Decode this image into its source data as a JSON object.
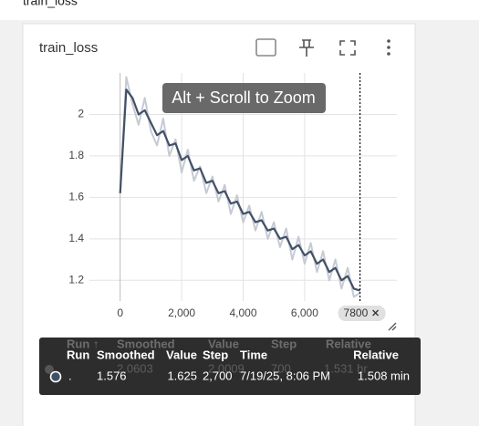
{
  "header": {
    "title": "train_loss"
  },
  "card": {
    "title": "train_loss",
    "zoom_hint": "Alt + Scroll to Zoom"
  },
  "chart_data": {
    "type": "line",
    "x": [
      0,
      200,
      400,
      600,
      800,
      1000,
      1200,
      1400,
      1600,
      1800,
      2000,
      2200,
      2400,
      2600,
      2800,
      3000,
      3200,
      3400,
      3600,
      3800,
      4000,
      4200,
      4400,
      4600,
      4800,
      5000,
      5200,
      5400,
      5600,
      5800,
      6000,
      6200,
      6400,
      6600,
      6800,
      7000,
      7200,
      7400,
      7600,
      7800
    ],
    "series": [
      {
        "color": "#c5cad3",
        "values": [
          1.62,
          2.18,
          2.05,
          1.95,
          2.08,
          1.92,
          1.85,
          1.98,
          1.8,
          1.88,
          1.72,
          1.83,
          1.68,
          1.75,
          1.62,
          1.7,
          1.58,
          1.66,
          1.52,
          1.61,
          1.48,
          1.56,
          1.44,
          1.53,
          1.4,
          1.48,
          1.36,
          1.45,
          1.3,
          1.41,
          1.28,
          1.38,
          1.24,
          1.34,
          1.2,
          1.3,
          1.16,
          1.26,
          1.12,
          1.14
        ]
      },
      {
        "color": "#425066",
        "values": [
          1.62,
          2.12,
          2.08,
          2.0,
          2.02,
          1.96,
          1.9,
          1.92,
          1.85,
          1.86,
          1.78,
          1.8,
          1.73,
          1.74,
          1.67,
          1.68,
          1.62,
          1.63,
          1.57,
          1.58,
          1.52,
          1.53,
          1.48,
          1.49,
          1.44,
          1.45,
          1.4,
          1.41,
          1.35,
          1.37,
          1.32,
          1.34,
          1.28,
          1.3,
          1.24,
          1.26,
          1.2,
          1.22,
          1.16,
          1.15
        ]
      }
    ],
    "xlim": [
      -1000,
      9000
    ],
    "ylim": [
      1.1,
      2.2
    ],
    "xticks": [
      0,
      {
        "value": 2000,
        "label": "2,000"
      },
      {
        "value": 4000,
        "label": "4,000"
      },
      {
        "value": 6000,
        "label": "6,000"
      }
    ],
    "yticks": [
      1.2,
      1.4,
      1.6,
      1.8,
      2
    ],
    "grid": true,
    "cursor": {
      "value": 7800,
      "label": "7800"
    }
  },
  "tooltip": {
    "faded_headers": [
      "Run ↑",
      "Smoothed",
      "Value",
      "Step",
      "Relative"
    ],
    "faded_row": [
      "2.0603",
      "2.0009",
      "700",
      "1.531 hr"
    ],
    "headers": [
      "Run",
      "Smoothed",
      "Value",
      "Step",
      "Time",
      "Relative"
    ],
    "row": [
      ".",
      "1.576",
      "1.625",
      "2,700",
      "7/19/25, 8:06 PM",
      "1.508 min"
    ]
  }
}
